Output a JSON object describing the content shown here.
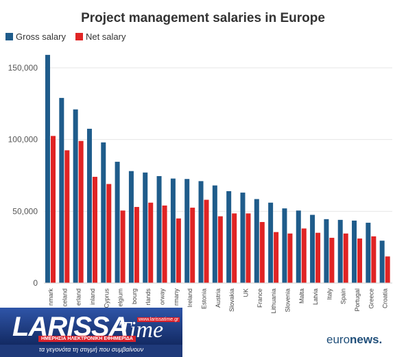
{
  "chart_data": {
    "type": "bar",
    "title": "Project management salaries in Europe",
    "xlabel": "",
    "ylabel": "",
    "ylim": [
      0,
      160000
    ],
    "yticks": [
      0,
      50000,
      100000,
      150000
    ],
    "ytick_labels": [
      "0",
      "50,000",
      "100,000",
      "150,000"
    ],
    "grid": true,
    "legend_position": "top-left",
    "categories": [
      "Denmark",
      "Iceland",
      "Switzerland",
      "Finland",
      "Cyprus",
      "Belgium",
      "Luxembourg",
      "Netherlands",
      "Norway",
      "Germany",
      "Ireland",
      "Estonia",
      "Austria",
      "Slovakia",
      "UK",
      "France",
      "Lithuania",
      "Slovenia",
      "Malta",
      "Latvia",
      "Italy",
      "Spain",
      "Portugal",
      "Greece",
      "Croatia"
    ],
    "category_labels": [
      "nmark",
      "celand",
      "erland",
      "inland",
      "Cyprus",
      "elgium",
      "bourg",
      "rlands",
      "orway",
      "rmany",
      "Ireland",
      "Estonia",
      "Austria",
      "Slovakia",
      "UK",
      "France",
      "Lithuania",
      "Slovenia",
      "Malta",
      "Latvia",
      "Italy",
      "Spain",
      "Portugal",
      "Greece",
      "Croatia"
    ],
    "series": [
      {
        "name": "Gross salary",
        "color": "#1f5c8b",
        "values": [
          159000,
          129000,
          121000,
          107500,
          98000,
          84500,
          78000,
          77000,
          74500,
          72800,
          72500,
          71000,
          68000,
          64000,
          63000,
          58500,
          56000,
          52000,
          50500,
          47500,
          44500,
          44000,
          43500,
          42000,
          29500
        ]
      },
      {
        "name": "Net salary",
        "color": "#e02424",
        "values": [
          102500,
          92500,
          99000,
          74000,
          69000,
          50500,
          53000,
          56000,
          54000,
          45000,
          52500,
          58000,
          46500,
          48500,
          48500,
          42500,
          35500,
          34500,
          38000,
          35000,
          31500,
          34500,
          31000,
          32500,
          18500
        ]
      }
    ]
  },
  "logo": {
    "word": "LARISSA",
    "time": "Time",
    "url": "www.larissatime.gr",
    "subtitle": "ΗΜΕΡΗΣΙΑ ΗΛΕΚΤΡΟΝΙΚΗ ΕΦΗΜΕΡΙΔΑ",
    "tagline": "τα γεγονότα τη στιγμή που συμβαίνουν"
  },
  "brand": {
    "part1": "euro",
    "part2": "news."
  }
}
